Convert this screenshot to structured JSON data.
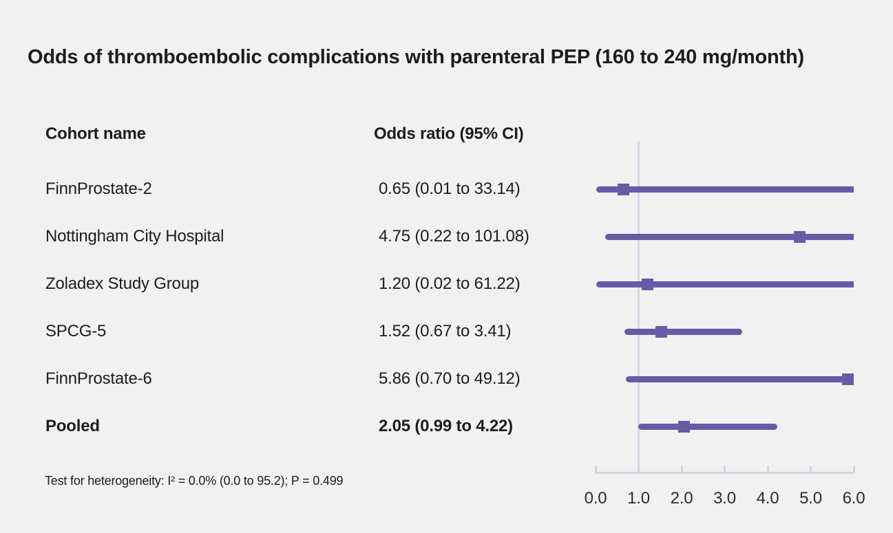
{
  "title": "Odds of thromboembolic complications with parenteral PEP (160 to 240 mg/month)",
  "columns": {
    "cohort": "Cohort name",
    "odds_ratio": "Odds ratio (95% CI)"
  },
  "footnote": "Test for heterogeneity: I² = 0.0% (0.0 to 95.2); P = 0.499",
  "colors": {
    "background": "#f2f1f1",
    "marker": "#695aa6",
    "reference_line": "#d6dae1",
    "axis": "#d2d7de",
    "text": "#1d1d1b"
  },
  "chart_data": {
    "type": "scatter",
    "variant": "forest-plot",
    "title": "Odds of thromboembolic complications with parenteral PEP (160 to 240 mg/month)",
    "xlabel": "",
    "ylabel": "",
    "xlim": [
      0,
      6
    ],
    "x_ticks": [
      0.0,
      1.0,
      2.0,
      3.0,
      4.0,
      5.0,
      6.0
    ],
    "x_tick_labels": [
      "0.0",
      "1.0",
      "2.0",
      "3.0",
      "4.0",
      "5.0",
      "6.0"
    ],
    "reference_line_x": 1.0,
    "grid": false,
    "legend": false,
    "rows": [
      {
        "cohort": "FinnProstate-2",
        "or": 0.65,
        "ci_low": 0.01,
        "ci_high": 33.14,
        "display": "0.65 (0.01 to 33.14)",
        "pooled": false
      },
      {
        "cohort": "Nottingham City Hospital",
        "or": 4.75,
        "ci_low": 0.22,
        "ci_high": 101.08,
        "display": "4.75 (0.22 to 101.08)",
        "pooled": false
      },
      {
        "cohort": "Zoladex Study Group",
        "or": 1.2,
        "ci_low": 0.02,
        "ci_high": 61.22,
        "display": "1.20 (0.02 to 61.22)",
        "pooled": false
      },
      {
        "cohort": "SPCG-5",
        "or": 1.52,
        "ci_low": 0.67,
        "ci_high": 3.41,
        "display": "1.52 (0.67 to 3.41)",
        "pooled": false
      },
      {
        "cohort": "FinnProstate-6",
        "or": 5.86,
        "ci_low": 0.7,
        "ci_high": 49.12,
        "display": "5.86 (0.70 to 49.12)",
        "pooled": false
      },
      {
        "cohort": "Pooled",
        "or": 2.05,
        "ci_low": 0.99,
        "ci_high": 4.22,
        "display": "2.05 (0.99 to 4.22)",
        "pooled": true
      }
    ],
    "heterogeneity_note": "Test for heterogeneity: I² = 0.0% (0.0 to 95.2); P = 0.499"
  }
}
